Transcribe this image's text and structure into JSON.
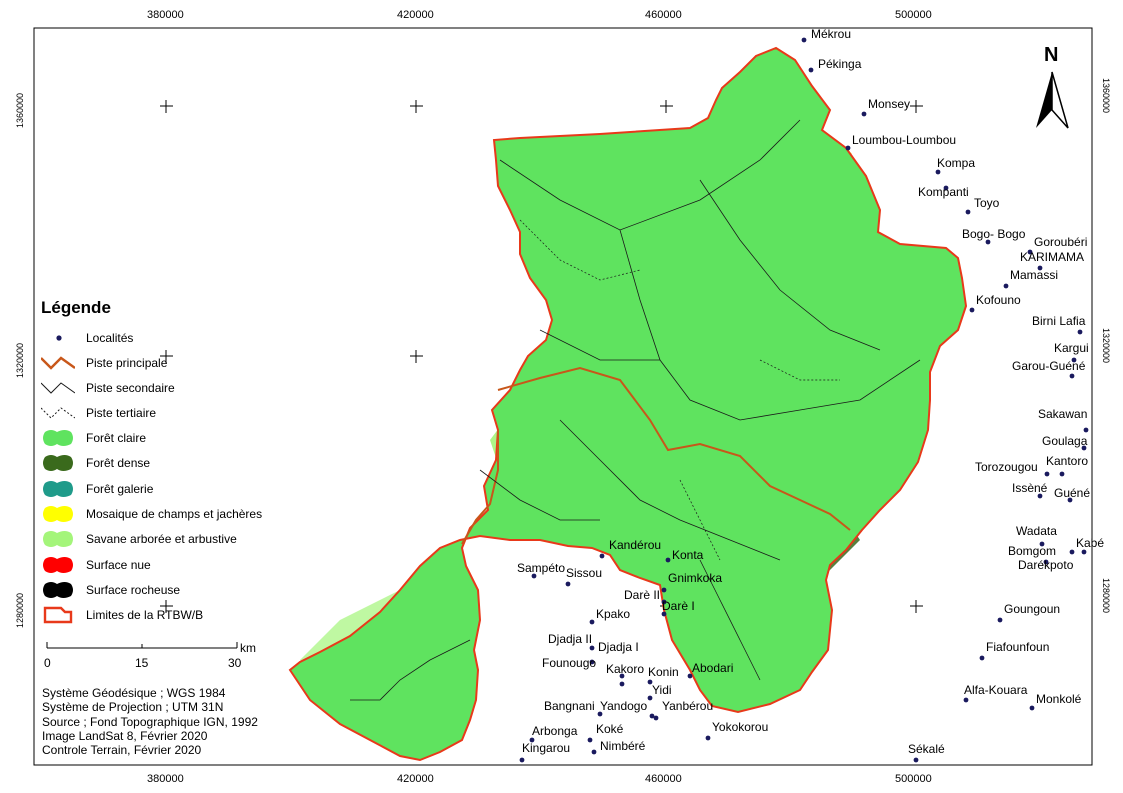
{
  "map": {
    "frame": {
      "x_ticks": [
        "380000",
        "420000",
        "460000",
        "500000"
      ],
      "y_ticks": [
        "1360000",
        "1320000",
        "1280000"
      ]
    },
    "north_label": "N",
    "colors": {
      "foret_claire": "#5fe35f",
      "foret_dense": "#3a6a1c",
      "foret_galerie": "#1f9b8a",
      "mosaique": "#ffff00",
      "savane": "#a4f57a",
      "surface_nue": "#ff0000",
      "surface_rocheuse": "#000000",
      "limite": "#e8391a",
      "piste_principale": "#c8571a",
      "locality_dot": "#1a1a5e"
    },
    "localities": [
      "Mékrou",
      "Pékinga",
      "Monsey",
      "Loumbou-Loumbou",
      "Kompa",
      "Kompanti",
      "Toyo",
      "Bogo- Bogo",
      "Goroubéri",
      "KARIMAMA",
      "Mamassi",
      "Kofouno",
      "Birni Lafia",
      "Kargui",
      "Garou-Guéné",
      "Sakawan",
      "Goulaga",
      "Torozougou",
      "Kantoro",
      "Issèné",
      "Guéné",
      "Wadata",
      "Kabé",
      "Bomgom",
      "Darékpoto",
      "Goungoun",
      "Fiafounfoun",
      "Alfa-Kouara",
      "Monkolé",
      "Sékalé",
      "Kandérou",
      "Konta",
      "Sampéto",
      "Sissou",
      "Gnimkoka",
      "Darè II",
      "Darè I",
      "Kpako",
      "Djadja II",
      "Djadja I",
      "Founougo",
      "Kakoro",
      "Konin",
      "Abodari",
      "Yidi",
      "Bangnani",
      "Yandogo",
      "Yanbérou",
      "Arbonga",
      "Koké",
      "Yokokorou",
      "Kingarou",
      "Nimbéré"
    ],
    "legend": {
      "title": "Légende",
      "items": [
        {
          "key": "localites",
          "label": "Localités"
        },
        {
          "key": "piste_principale",
          "label": "Piste principale"
        },
        {
          "key": "piste_secondaire",
          "label": "Piste secondaire"
        },
        {
          "key": "piste_tertiaire",
          "label": "Piste tertiaire"
        },
        {
          "key": "foret_claire",
          "label": "Forêt claire"
        },
        {
          "key": "foret_dense",
          "label": "Forêt dense"
        },
        {
          "key": "foret_galerie",
          "label": "Forêt galerie"
        },
        {
          "key": "mosaique",
          "label": "Mosaique de champs et jachères"
        },
        {
          "key": "savane",
          "label": "Savane arborée et arbustive"
        },
        {
          "key": "surface_nue",
          "label": "Surface nue"
        },
        {
          "key": "surface_rocheuse",
          "label": "Surface rocheuse"
        },
        {
          "key": "limites",
          "label": "Limites de la RTBW/B"
        }
      ]
    },
    "scale": {
      "ticks": [
        "0",
        "15",
        "30"
      ],
      "unit": "km"
    },
    "metadata_lines": [
      "Système Géodésique ; WGS 1984",
      "Système de Projection ; UTM 31N",
      "Source ; Fond Topographique IGN, 1992",
      "Image LandSat 8, Février 2020",
      "Controle Terrain, Février 2020"
    ]
  }
}
